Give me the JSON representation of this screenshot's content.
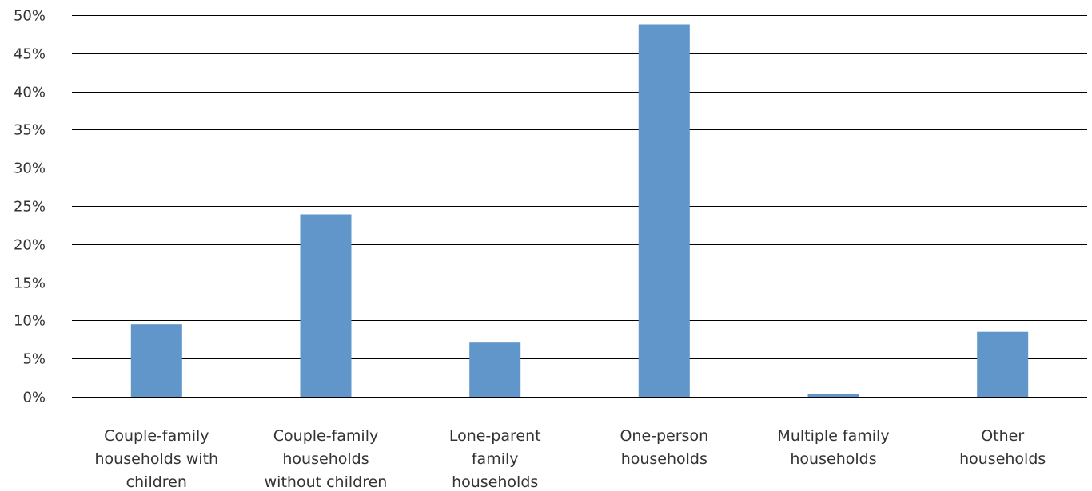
{
  "chart_data": {
    "type": "bar",
    "title": "",
    "xlabel": "",
    "ylabel": "",
    "ylim": [
      0,
      50
    ],
    "y_tick_step": 5,
    "y_tick_format": "percent",
    "grid": true,
    "bar_color": "#6096C9",
    "categories": [
      [
        "Couple-family",
        "households with",
        "children"
      ],
      [
        "Couple-family",
        "households",
        "without children"
      ],
      [
        "Lone-parent",
        "family",
        "households"
      ],
      [
        "One-person",
        "households"
      ],
      [
        "Multiple family",
        "households"
      ],
      [
        "Other",
        "households"
      ]
    ],
    "values": [
      9.5,
      23.9,
      7.2,
      48.8,
      0.4,
      8.5
    ]
  }
}
